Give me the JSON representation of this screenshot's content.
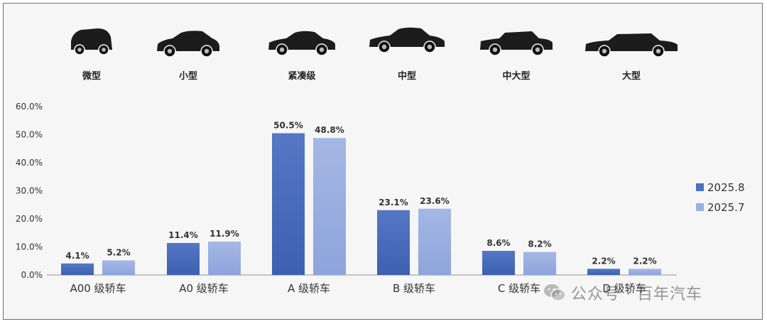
{
  "car_types": [
    {
      "label": "微型",
      "icon": "microcar-icon"
    },
    {
      "label": "小型",
      "icon": "small-car-icon"
    },
    {
      "label": "紧凑级",
      "icon": "compact-sedan-icon"
    },
    {
      "label": "中型",
      "icon": "midsize-sedan-icon"
    },
    {
      "label": "中大型",
      "icon": "large-sedan-icon"
    },
    {
      "label": "大型",
      "icon": "full-size-sedan-icon"
    }
  ],
  "chart_data": {
    "type": "bar",
    "categories": [
      "A00 级轿车",
      "A0 级轿车",
      "A 级轿车",
      "B 级轿车",
      "C 级轿车",
      "D 级轿车"
    ],
    "series": [
      {
        "name": "2025.8",
        "values": [
          4.1,
          11.4,
          50.5,
          23.1,
          8.6,
          2.2
        ],
        "labels": [
          "4.1%",
          "11.4%",
          "50.5%",
          "23.1%",
          "8.6%",
          "2.2%"
        ],
        "color": "#4a6fbd"
      },
      {
        "name": "2025.7",
        "values": [
          5.2,
          11.9,
          48.8,
          23.6,
          8.2,
          2.2
        ],
        "labels": [
          "5.2%",
          "11.9%",
          "48.8%",
          "23.6%",
          "8.2%",
          "2.2%"
        ],
        "color": "#9aaee0"
      }
    ],
    "yticks": [
      "0.0%",
      "10.0%",
      "20.0%",
      "30.0%",
      "40.0%",
      "50.0%",
      "60.0%"
    ],
    "ylim": [
      0,
      60
    ],
    "grid": false,
    "legend_position": "right"
  },
  "watermark": {
    "icon": "wechat-icon",
    "text": "公众号 · 百年汽车"
  }
}
